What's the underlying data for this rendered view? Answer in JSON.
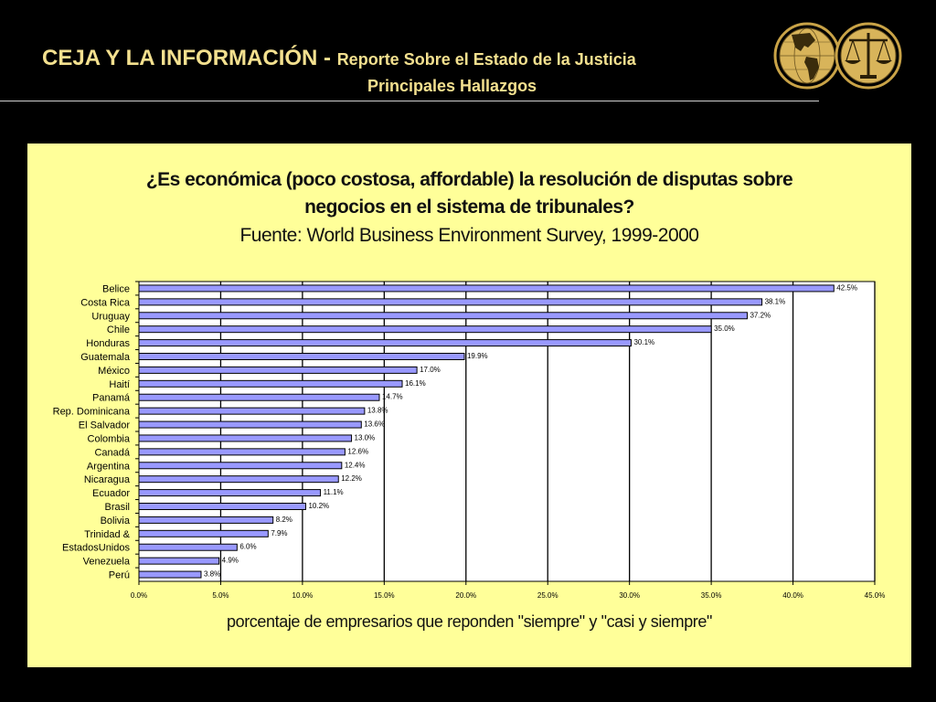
{
  "header": {
    "title_main": "CEJA Y LA INFORMACIÓN - ",
    "title_sub": "Reporte Sobre el Estado de la Justicia",
    "subtitle": "Principales Hallazgos"
  },
  "logos": {
    "globe": "globe-icon",
    "scales": "scales-of-justice-icon"
  },
  "colors": {
    "background": "#000000",
    "header_text": "#f3e08f",
    "panel": "#ffff99",
    "bar_fill": "#9999ff",
    "bar_stroke": "#000000"
  },
  "chart_data": {
    "type": "bar",
    "orientation": "horizontal",
    "title_line1": "¿Es económica (poco costosa, affordable) la resolución de disputas sobre",
    "title_line2": "negocios en el sistema de tribunales?",
    "subtitle": "Fuente: World Business Environment Survey, 1999-2000",
    "xlabel": "porcentaje de empresarios que reponden \"siempre\" y \"casi y siempre\"",
    "ylabel": "",
    "xlim": [
      0,
      45
    ],
    "x_ticks": [
      "0.0%",
      "5.0%",
      "10.0%",
      "15.0%",
      "20.0%",
      "25.0%",
      "30.0%",
      "35.0%",
      "40.0%",
      "45.0%"
    ],
    "grid": "vertical",
    "legend": "none",
    "categories": [
      "Belice",
      "Costa Rica",
      "Uruguay",
      "Chile",
      "Honduras",
      "Guatemala",
      "México",
      "Haití",
      "Panamá",
      "Rep. Dominicana",
      "El Salvador",
      "Colombia",
      "Canadá",
      "Argentina",
      "Nicaragua",
      "Ecuador",
      "Brasil",
      "Bolivia",
      "Trinidad &",
      "EstadosUnidos",
      "Venezuela",
      "Perú"
    ],
    "values": [
      42.5,
      38.1,
      37.2,
      35.0,
      30.1,
      19.9,
      17.0,
      16.1,
      14.7,
      13.8,
      13.6,
      13.0,
      12.6,
      12.4,
      12.2,
      11.1,
      10.2,
      8.2,
      7.9,
      6.0,
      4.9,
      3.8
    ],
    "value_labels": [
      "42.5%",
      "38.1%",
      "37.2%",
      "35.0%",
      "30.1%",
      "19.9%",
      "17.0%",
      "16.1%",
      "14.7%",
      "13.8%",
      "13.6%",
      "13.0%",
      "12.6%",
      "12.4%",
      "12.2%",
      "11.1%",
      "10.2%",
      "8.2%",
      "7.9%",
      "6.0%",
      "4.9%",
      "3.8%"
    ]
  }
}
